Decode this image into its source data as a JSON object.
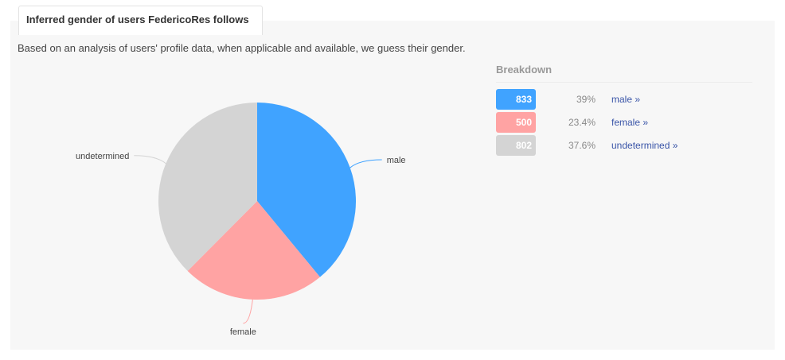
{
  "panel": {
    "tab_title": "Inferred gender of users FedericoRes follows",
    "description": "Based on an analysis of users' profile data, when applicable and available, we guess their gender."
  },
  "chart_data": {
    "type": "pie",
    "title": "",
    "series": [
      {
        "name": "male",
        "value": 833,
        "percent": 39,
        "color": "#40a3ff"
      },
      {
        "name": "female",
        "value": 500,
        "percent": 23.4,
        "color": "#ffa3a3"
      },
      {
        "name": "undetermined",
        "value": 802,
        "percent": 37.6,
        "color": "#d4d4d4"
      }
    ]
  },
  "breakdown": {
    "title": "Breakdown",
    "rows": [
      {
        "count": "833",
        "percent": "39%",
        "link": "male »",
        "color": "#40a3ff"
      },
      {
        "count": "500",
        "percent": "23.4%",
        "link": "female »",
        "color": "#ffa3a3"
      },
      {
        "count": "802",
        "percent": "37.6%",
        "link": "undetermined »",
        "color": "#d4d4d4"
      }
    ]
  }
}
